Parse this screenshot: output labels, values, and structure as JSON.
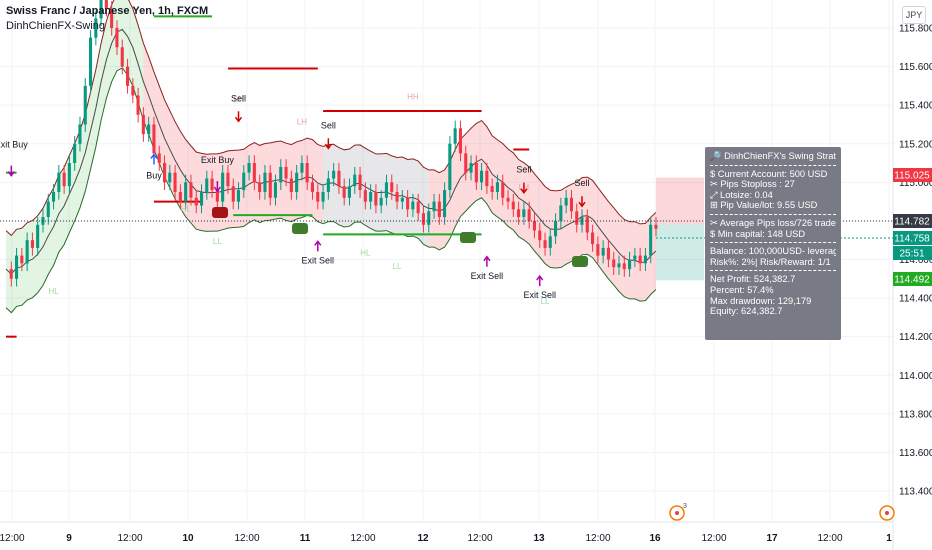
{
  "header": {
    "title": "Swiss Franc / Japanese Yen, 1h, FXCM",
    "indicator": "DinhChienFX-Swing",
    "currency": "JPY"
  },
  "chart_data": {
    "type": "candlestick",
    "instrument": "CHFJPY",
    "timeframe": "1h",
    "ylim": [
      113.3,
      116.0
    ],
    "y_ticks": [
      "115.800",
      "115.600",
      "115.400",
      "115.200",
      "115.000",
      "114.800",
      "114.600",
      "114.400",
      "114.200",
      "114.000",
      "113.800",
      "113.600",
      "113.400"
    ],
    "x_ticks": [
      "12:00",
      "9",
      "12:00",
      "10",
      "12:00",
      "11",
      "12:00",
      "12",
      "12:00",
      "13",
      "12:00",
      "16",
      "12:00",
      "17",
      "12:00",
      "1"
    ],
    "grid": true,
    "price_tags": [
      {
        "label": "115.025",
        "value": 115.025,
        "color": "#f23645"
      },
      {
        "label": "114.782",
        "value": 114.782,
        "color": "#363a45"
      },
      {
        "label": "114.758",
        "value": 114.758,
        "color": "#089981"
      },
      {
        "label": "25:51",
        "value": 114.72,
        "color": "#089981"
      },
      {
        "label": "114.492",
        "value": 114.492,
        "color": "#22ab22"
      }
    ],
    "candle_path": [
      114.55,
      114.5,
      114.62,
      114.58,
      114.7,
      114.66,
      114.78,
      114.82,
      114.9,
      114.95,
      115.05,
      114.98,
      115.1,
      115.2,
      115.3,
      115.5,
      115.75,
      115.85,
      115.95,
      115.9,
      115.8,
      115.7,
      115.6,
      115.5,
      115.45,
      115.35,
      115.25,
      115.3,
      115.15,
      115.1,
      115.0,
      115.05,
      114.95,
      114.9,
      115.0,
      114.92,
      114.88,
      114.95,
      115.02,
      114.96,
      114.9,
      115.05,
      114.98,
      114.9,
      114.96,
      115.05,
      115.1,
      115.0,
      114.95,
      115.05,
      114.92,
      115.0,
      115.08,
      115.02,
      114.95,
      115.05,
      115.1,
      115.0,
      114.95,
      114.9,
      114.95,
      115.02,
      115.06,
      114.98,
      114.92,
      114.98,
      115.04,
      114.96,
      114.9,
      114.95,
      114.88,
      114.92,
      115.0,
      114.95,
      114.9,
      114.92,
      114.86,
      114.9,
      114.84,
      114.78,
      114.85,
      114.9,
      114.82,
      114.96,
      115.2,
      115.28,
      115.15,
      115.05,
      115.1,
      115.0,
      115.06,
      114.98,
      114.95,
      115.0,
      114.92,
      114.9,
      114.86,
      114.82,
      114.86,
      114.8,
      114.75,
      114.7,
      114.66,
      114.72,
      114.8,
      114.88,
      114.92,
      114.85,
      114.78,
      114.82,
      114.74,
      114.68,
      114.62,
      114.66,
      114.6,
      114.56,
      114.58,
      114.55,
      114.6,
      114.62,
      114.58,
      114.62,
      114.78,
      114.76
    ],
    "bands": {
      "upper_start": 114.62,
      "upper_end": 114.9,
      "lower_start": 114.3,
      "lower_end": 114.55
    },
    "signals": [
      {
        "label": "Exit Buy",
        "x_index": 1,
        "value": 115.18
      },
      {
        "label": "Buy",
        "x_index": 28,
        "value": 115.02
      },
      {
        "label": "Exit Buy",
        "x_index": 40,
        "value": 115.1
      },
      {
        "label": "Sell",
        "x_index": 44,
        "value": 115.42
      },
      {
        "label": "Exit Sell",
        "x_index": 59,
        "value": 114.58
      },
      {
        "label": "Sell",
        "x_index": 61,
        "value": 115.28
      },
      {
        "label": "Exit Sell",
        "x_index": 91,
        "value": 114.5
      },
      {
        "label": "Sell",
        "x_index": 98,
        "value": 115.05
      },
      {
        "label": "Exit Sell",
        "x_index": 101,
        "value": 114.4
      },
      {
        "label": "Sell",
        "x_index": 109,
        "value": 114.98
      }
    ],
    "structure_labels": [
      {
        "label": "HL",
        "x_index": 9,
        "value": 114.42
      },
      {
        "label": "HH",
        "x_index": 20,
        "value": 115.98
      },
      {
        "label": "LH",
        "x_index": 44,
        "value": 115.42
      },
      {
        "label": "HL",
        "x_index": 34,
        "value": 114.85
      },
      {
        "label": "LL",
        "x_index": 40,
        "value": 114.68
      },
      {
        "label": "LH",
        "x_index": 56,
        "value": 115.3
      },
      {
        "label": "HL",
        "x_index": 68,
        "value": 114.62
      },
      {
        "label": "LL",
        "x_index": 74,
        "value": 114.55
      },
      {
        "label": "HH",
        "x_index": 77,
        "value": 115.43
      },
      {
        "label": "LH",
        "x_index": 98,
        "value": 114.96
      },
      {
        "label": "LL",
        "x_index": 102,
        "value": 114.37
      }
    ],
    "levels": [
      {
        "value": 115.86,
        "from": 28,
        "to": 39,
        "color": "#22ab22"
      },
      {
        "value": 115.59,
        "from": 42,
        "to": 59,
        "color": "#d30000"
      },
      {
        "value": 115.37,
        "from": 60,
        "to": 90,
        "color": "#d30000"
      },
      {
        "value": 114.9,
        "from": 28,
        "to": 37,
        "color": "#d30000"
      },
      {
        "value": 114.83,
        "from": 43,
        "to": 58,
        "color": "#22ab22"
      },
      {
        "value": 114.73,
        "from": 60,
        "to": 90,
        "color": "#22ab22"
      },
      {
        "value": 115.17,
        "from": 96,
        "to": 99,
        "color": "#d30000"
      },
      {
        "value": 114.2,
        "from": 0,
        "to": 2,
        "color": "#d30000"
      },
      {
        "value": 115.05,
        "from": 0,
        "to": 2,
        "color": "#22ab22"
      }
    ],
    "trade_box": {
      "entry": 114.782,
      "stop": 115.025,
      "target": 114.492
    },
    "event_badge": "3"
  },
  "info_panel": {
    "title": "🔎 DinhChienFX's Swing Strategy",
    "lines_a": [
      "$ Current Account: 500 USD",
      "✂ Pips Stoploss : 27",
      "⤢ Lotsize: 0.04",
      "⊞ Pip Value/lot: 9.55 USD"
    ],
    "lines_b": [
      "✂ Average Pips loss/726 trades : 31",
      "$ Min capital: 148 USD"
    ],
    "lines_c": [
      "Balance: 100,000USD- leverage: 1:1",
      "Risk%: 2%| Risk/Reward: 1/1"
    ],
    "lines_d": [
      "Net Profit: 524,382.7",
      "Percent: 57.4%",
      "Max drawdown: 129,179",
      "Equity: 624,382.7"
    ]
  },
  "colors": {
    "bull": "#089981",
    "bear": "#f23645",
    "band_red": "rgba(242,54,69,0.18)",
    "band_green": "rgba(34,171,34,0.13)",
    "band_gray": "rgba(120,123,134,0.18)",
    "signal": "#b000b0"
  }
}
